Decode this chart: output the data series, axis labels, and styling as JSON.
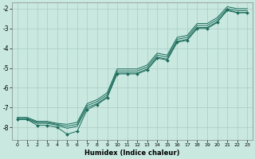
{
  "xlabel": "Humidex (Indice chaleur)",
  "bg_color": "#c8e8e0",
  "grid_color": "#aaccC4",
  "line_color": "#1a6b5a",
  "xlim": [
    -0.5,
    23.5
  ],
  "ylim": [
    -8.65,
    -1.7
  ],
  "yticks": [
    -8,
    -7,
    -6,
    -5,
    -4,
    -3,
    -2
  ],
  "xticks": [
    0,
    1,
    2,
    3,
    4,
    5,
    6,
    7,
    8,
    9,
    10,
    11,
    12,
    13,
    14,
    15,
    16,
    17,
    18,
    19,
    20,
    21,
    22,
    23
  ],
  "jagged_y": [
    -7.6,
    -7.6,
    -7.9,
    -7.9,
    -8.0,
    -8.35,
    -8.2,
    -7.1,
    -6.85,
    -6.5,
    -5.3,
    -5.3,
    -5.3,
    -5.1,
    -4.5,
    -4.6,
    -3.7,
    -3.6,
    -3.0,
    -3.0,
    -2.7,
    -2.05,
    -2.2,
    -2.2
  ],
  "smooth1_y": [
    -7.55,
    -7.55,
    -7.75,
    -7.75,
    -7.85,
    -7.95,
    -7.85,
    -6.9,
    -6.7,
    -6.35,
    -5.15,
    -5.15,
    -5.15,
    -4.95,
    -4.35,
    -4.45,
    -3.55,
    -3.45,
    -2.85,
    -2.85,
    -2.55,
    -2.0,
    -2.1,
    -2.1
  ],
  "smooth2_y": [
    -7.5,
    -7.5,
    -7.7,
    -7.7,
    -7.8,
    -7.85,
    -7.75,
    -6.8,
    -6.6,
    -6.25,
    -5.05,
    -5.05,
    -5.05,
    -4.85,
    -4.25,
    -4.35,
    -3.45,
    -3.35,
    -2.75,
    -2.75,
    -2.45,
    -1.9,
    -2.0,
    -2.0
  ],
  "smooth3_y": [
    -7.6,
    -7.6,
    -7.8,
    -7.8,
    -7.9,
    -8.05,
    -7.95,
    -7.0,
    -6.8,
    -6.45,
    -5.25,
    -5.25,
    -5.25,
    -5.05,
    -4.45,
    -4.55,
    -3.65,
    -3.55,
    -2.95,
    -2.95,
    -2.65,
    -2.1,
    -2.2,
    -2.2
  ]
}
